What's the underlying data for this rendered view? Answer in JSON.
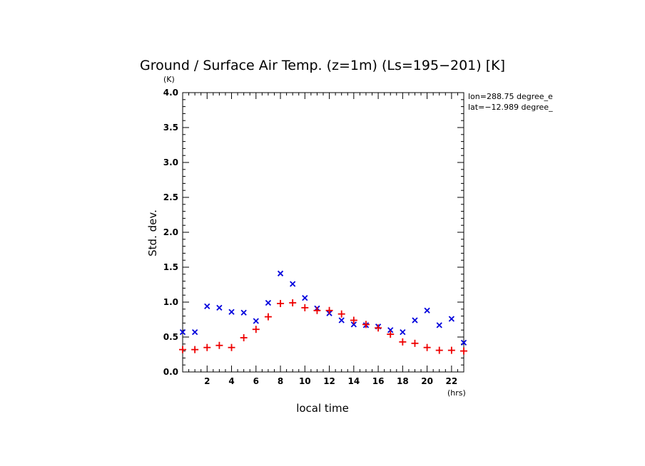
{
  "chart_data": {
    "type": "scatter",
    "title": "Ground / Surface Air Temp. (z=1m) (Ls=195−201) [K]",
    "ylabel": "Std. dev.",
    "yunit": "(K)",
    "xlabel": "local time",
    "xunit": "(hrs)",
    "xlim": [
      0,
      23
    ],
    "ylim": [
      0.0,
      4.0
    ],
    "xticks": [
      2,
      4,
      6,
      8,
      10,
      12,
      14,
      16,
      18,
      20,
      22
    ],
    "xtick_labels": [
      "2",
      "4",
      "6",
      "8",
      "10",
      "12",
      "14",
      "16",
      "18",
      "20",
      "22"
    ],
    "yticks": [
      0.0,
      0.5,
      1.0,
      1.5,
      2.0,
      2.5,
      3.0,
      3.5,
      4.0
    ],
    "ytick_labels": [
      "0.0",
      "0.5",
      "1.0",
      "1.5",
      "2.0",
      "2.5",
      "3.0",
      "3.5",
      "4.0"
    ],
    "annotations": [
      "lon=288.75 degree_e",
      "lat=−12.989 degree_"
    ],
    "grid": false,
    "series": [
      {
        "marker": "x",
        "color": "#0000dd",
        "x": [
          0,
          1,
          2,
          3,
          4,
          5,
          6,
          7,
          8,
          9,
          10,
          11,
          12,
          13,
          14,
          15,
          16,
          17,
          18,
          19,
          20,
          21,
          22,
          23
        ],
        "y": [
          0.57,
          0.57,
          0.94,
          0.92,
          0.86,
          0.85,
          0.73,
          0.99,
          1.41,
          1.26,
          1.06,
          0.91,
          0.84,
          0.74,
          0.68,
          0.67,
          0.65,
          0.6,
          0.57,
          0.74,
          0.88,
          0.67,
          0.76,
          0.42
        ]
      },
      {
        "marker": "+",
        "color": "#ee0000",
        "x": [
          0,
          1,
          2,
          3,
          4,
          5,
          6,
          7,
          8,
          9,
          10,
          11,
          12,
          13,
          14,
          15,
          16,
          17,
          18,
          19,
          20,
          21,
          22,
          23
        ],
        "y": [
          0.32,
          0.32,
          0.35,
          0.38,
          0.35,
          0.49,
          0.61,
          0.79,
          0.98,
          0.99,
          0.92,
          0.88,
          0.88,
          0.83,
          0.74,
          0.68,
          0.63,
          0.54,
          0.43,
          0.41,
          0.35,
          0.31,
          0.31,
          0.3
        ]
      }
    ]
  }
}
